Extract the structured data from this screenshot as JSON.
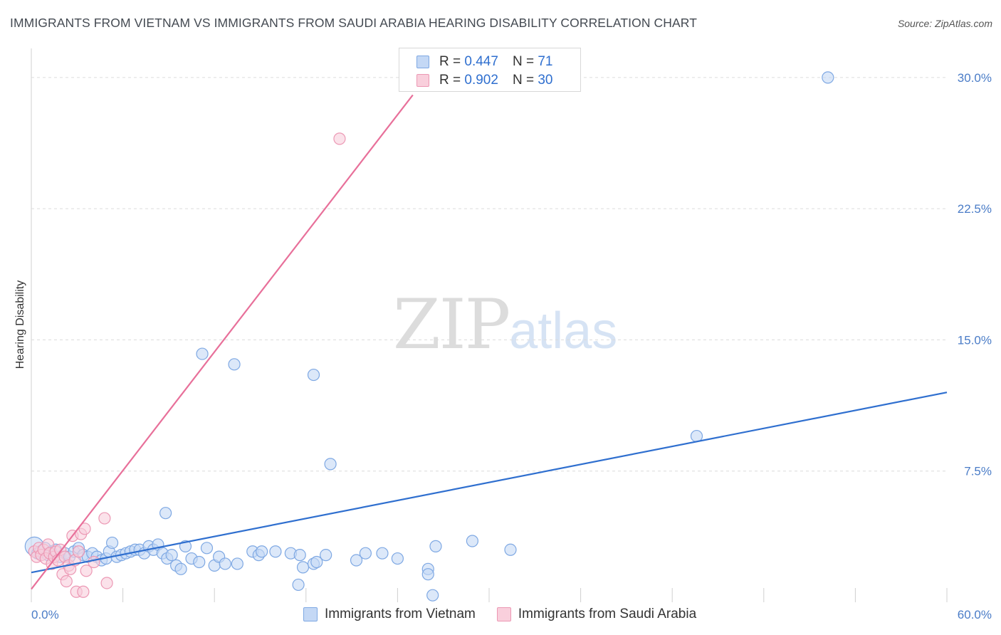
{
  "title": "IMMIGRANTS FROM VIETNAM VS IMMIGRANTS FROM SAUDI ARABIA HEARING DISABILITY CORRELATION CHART",
  "source": "Source: ZipAtlas.com",
  "watermark": {
    "zip": "ZIP",
    "atlas": "atlas"
  },
  "legend": {
    "vietnam": {
      "r_label": "R = ",
      "r_value": "0.447",
      "n_label": "N = ",
      "n_value": " 71"
    },
    "saudi": {
      "r_label": "R = ",
      "r_value": "0.902",
      "n_label": "N = ",
      "n_value": "30"
    }
  },
  "bottom_legend": {
    "vietnam": "Immigrants from Vietnam",
    "saudi": "Immigrants from Saudi Arabia"
  },
  "colors": {
    "blue_fill": "#c4d8f5",
    "blue_stroke": "#7ea8e3",
    "blue_line": "#2f6fcf",
    "pink_fill": "#f9cfdc",
    "pink_stroke": "#ec98b4",
    "pink_line": "#e8709a",
    "grid": "#dcdcdc",
    "tick_text": "#4a7cc7"
  },
  "chart_data": {
    "type": "scatter",
    "title": "IMMIGRANTS FROM VIETNAM VS IMMIGRANTS FROM SAUDI ARABIA HEARING DISABILITY CORRELATION CHART",
    "xlabel": "",
    "ylabel": "Hearing Disability",
    "xlim": [
      0,
      60
    ],
    "ylim": [
      0,
      31.5
    ],
    "x_tick_labels": [
      {
        "value": 0,
        "label": "0.0%"
      },
      {
        "value": 60,
        "label": "60.0%"
      }
    ],
    "y_ticks": [
      {
        "value": 7.5,
        "label": "7.5%"
      },
      {
        "value": 15,
        "label": "15.0%"
      },
      {
        "value": 22.5,
        "label": "22.5%"
      },
      {
        "value": 30,
        "label": "30.0%"
      }
    ],
    "x_minor_ticks": [
      0,
      6,
      12,
      18,
      24,
      30,
      36,
      42,
      48,
      54,
      60
    ],
    "series": [
      {
        "name": "Immigrants from Vietnam",
        "R": 0.447,
        "N": 71,
        "trend": {
          "x0": 0,
          "y0": 1.7,
          "x1": 60,
          "y1": 12.0
        },
        "points": [
          {
            "x": 0.2,
            "y": 3.2,
            "big": true
          },
          {
            "x": 0.4,
            "y": 2.8
          },
          {
            "x": 0.6,
            "y": 2.9
          },
          {
            "x": 0.9,
            "y": 3.1
          },
          {
            "x": 1.1,
            "y": 2.7
          },
          {
            "x": 1.3,
            "y": 2.9
          },
          {
            "x": 1.6,
            "y": 3.0
          },
          {
            "x": 1.9,
            "y": 2.6
          },
          {
            "x": 2.2,
            "y": 2.8
          },
          {
            "x": 2.5,
            "y": 2.6
          },
          {
            "x": 2.8,
            "y": 2.9
          },
          {
            "x": 3.1,
            "y": 3.1
          },
          {
            "x": 3.4,
            "y": 2.7
          },
          {
            "x": 3.7,
            "y": 2.6
          },
          {
            "x": 4.0,
            "y": 2.8
          },
          {
            "x": 4.3,
            "y": 2.6
          },
          {
            "x": 4.6,
            "y": 2.4
          },
          {
            "x": 4.9,
            "y": 2.5
          },
          {
            "x": 5.1,
            "y": 2.9
          },
          {
            "x": 5.3,
            "y": 3.4
          },
          {
            "x": 5.6,
            "y": 2.6
          },
          {
            "x": 5.9,
            "y": 2.7
          },
          {
            "x": 6.2,
            "y": 2.8
          },
          {
            "x": 6.5,
            "y": 2.9
          },
          {
            "x": 6.8,
            "y": 3.0
          },
          {
            "x": 7.1,
            "y": 3.0
          },
          {
            "x": 7.4,
            "y": 2.8
          },
          {
            "x": 7.7,
            "y": 3.2
          },
          {
            "x": 8.0,
            "y": 3.0
          },
          {
            "x": 8.3,
            "y": 3.3
          },
          {
            "x": 8.6,
            "y": 2.8
          },
          {
            "x": 8.9,
            "y": 2.5
          },
          {
            "x": 9.2,
            "y": 2.7
          },
          {
            "x": 9.5,
            "y": 2.1
          },
          {
            "x": 9.8,
            "y": 1.9
          },
          {
            "x": 8.8,
            "y": 5.1
          },
          {
            "x": 10.1,
            "y": 3.2
          },
          {
            "x": 10.5,
            "y": 2.5
          },
          {
            "x": 11.0,
            "y": 2.3
          },
          {
            "x": 11.5,
            "y": 3.1
          },
          {
            "x": 12.0,
            "y": 2.1
          },
          {
            "x": 12.3,
            "y": 2.6
          },
          {
            "x": 12.7,
            "y": 2.2
          },
          {
            "x": 13.5,
            "y": 2.2
          },
          {
            "x": 14.5,
            "y": 2.9
          },
          {
            "x": 14.9,
            "y": 2.7
          },
          {
            "x": 15.1,
            "y": 2.9
          },
          {
            "x": 16.0,
            "y": 2.9
          },
          {
            "x": 17.0,
            "y": 2.8
          },
          {
            "x": 17.5,
            "y": 1.0
          },
          {
            "x": 17.6,
            "y": 2.7
          },
          {
            "x": 17.8,
            "y": 2.0
          },
          {
            "x": 18.5,
            "y": 2.2
          },
          {
            "x": 18.7,
            "y": 2.3
          },
          {
            "x": 19.3,
            "y": 2.7
          },
          {
            "x": 21.3,
            "y": 2.4
          },
          {
            "x": 21.9,
            "y": 2.8
          },
          {
            "x": 23.0,
            "y": 2.8
          },
          {
            "x": 24.0,
            "y": 2.5
          },
          {
            "x": 26.0,
            "y": 1.9
          },
          {
            "x": 26.0,
            "y": 1.6
          },
          {
            "x": 26.5,
            "y": 3.2
          },
          {
            "x": 26.3,
            "y": 0.4
          },
          {
            "x": 28.9,
            "y": 3.5
          },
          {
            "x": 31.4,
            "y": 3.0
          },
          {
            "x": 11.2,
            "y": 14.2
          },
          {
            "x": 13.3,
            "y": 13.6
          },
          {
            "x": 18.5,
            "y": 13.0
          },
          {
            "x": 19.6,
            "y": 7.9
          },
          {
            "x": 43.6,
            "y": 9.5
          },
          {
            "x": 52.2,
            "y": 30.0
          }
        ]
      },
      {
        "name": "Immigrants from Saudi Arabia",
        "R": 0.902,
        "N": 30,
        "trend": {
          "x0": 0,
          "y0": 0.75,
          "x1": 25.0,
          "y1": 29.0
        },
        "points": [
          {
            "x": 0.2,
            "y": 2.9
          },
          {
            "x": 0.35,
            "y": 2.6
          },
          {
            "x": 0.5,
            "y": 3.1
          },
          {
            "x": 0.65,
            "y": 2.7
          },
          {
            "x": 0.8,
            "y": 3.0
          },
          {
            "x": 0.95,
            "y": 2.5
          },
          {
            "x": 1.1,
            "y": 3.3
          },
          {
            "x": 1.2,
            "y": 2.8
          },
          {
            "x": 1.35,
            "y": 2.2
          },
          {
            "x": 1.5,
            "y": 2.6
          },
          {
            "x": 1.6,
            "y": 2.9
          },
          {
            "x": 1.75,
            "y": 2.4
          },
          {
            "x": 1.9,
            "y": 3.0
          },
          {
            "x": 2.05,
            "y": 1.6
          },
          {
            "x": 2.2,
            "y": 2.6
          },
          {
            "x": 2.3,
            "y": 1.2
          },
          {
            "x": 2.45,
            "y": 2.1
          },
          {
            "x": 2.55,
            "y": 1.9
          },
          {
            "x": 2.7,
            "y": 3.8
          },
          {
            "x": 2.85,
            "y": 2.4
          },
          {
            "x": 2.95,
            "y": 0.6
          },
          {
            "x": 3.1,
            "y": 2.9
          },
          {
            "x": 3.25,
            "y": 3.9
          },
          {
            "x": 3.4,
            "y": 0.6
          },
          {
            "x": 3.5,
            "y": 4.2
          },
          {
            "x": 3.6,
            "y": 1.8
          },
          {
            "x": 4.1,
            "y": 2.3
          },
          {
            "x": 4.8,
            "y": 4.8
          },
          {
            "x": 4.95,
            "y": 1.1
          },
          {
            "x": 20.2,
            "y": 26.5
          }
        ]
      }
    ]
  }
}
